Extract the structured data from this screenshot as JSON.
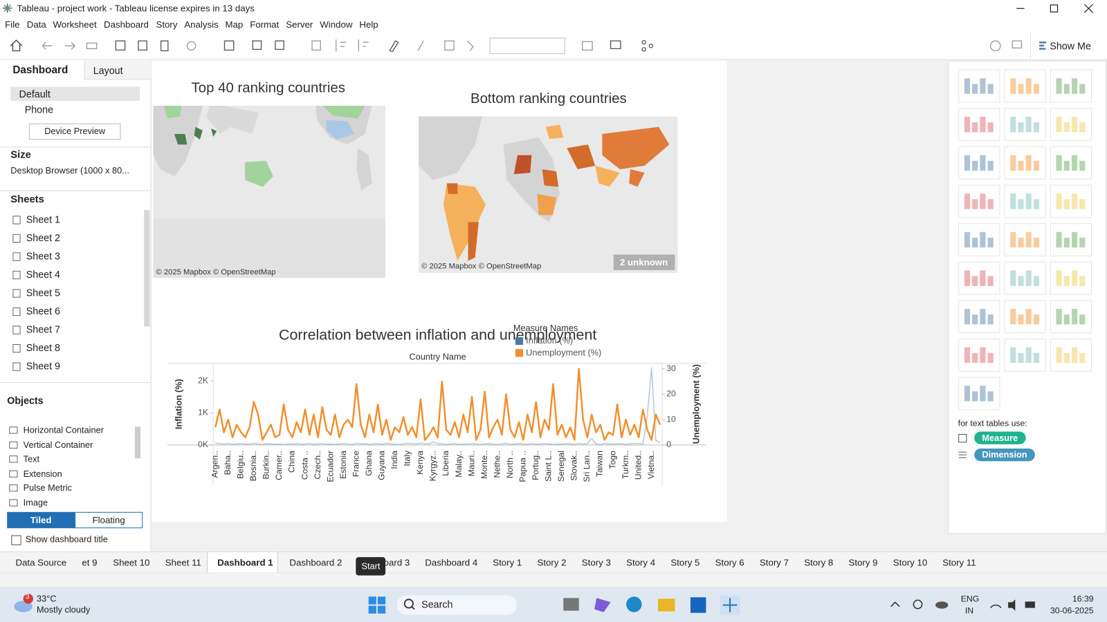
{
  "window": {
    "title": "Tableau - project work - Tableau license expires in 13 days"
  },
  "menu": [
    "File",
    "Data",
    "Worksheet",
    "Dashboard",
    "Story",
    "Analysis",
    "Map",
    "Format",
    "Server",
    "Window",
    "Help"
  ],
  "toolbar": {
    "show_me": "Show Me"
  },
  "left_panel": {
    "tabs": [
      "Dashboard",
      "Layout"
    ],
    "devices": [
      "Default",
      "Phone"
    ],
    "device_preview": "Device Preview",
    "size_label": "Size",
    "size_value": "Desktop Browser (1000 x 80...",
    "sheets_label": "Sheets",
    "sheets": [
      "Sheet 1",
      "Sheet 2",
      "Sheet 3",
      "Sheet 4",
      "Sheet 5",
      "Sheet 6",
      "Sheet 7",
      "Sheet 8",
      "Sheet 9"
    ],
    "objects_label": "Objects",
    "objects": [
      "Horizontal Container",
      "Vertical Container",
      "Text",
      "Extension",
      "Pulse Metric",
      "Image"
    ],
    "tiled": "Tiled",
    "floating": "Floating",
    "show_title": "Show dashboard title"
  },
  "map_top": {
    "title": "Top 40 ranking countries",
    "attribution": "© 2025 Mapbox © OpenStreetMap"
  },
  "map_bottom": {
    "title": "Bottom ranking countries",
    "attribution": "© 2025 Mapbox © OpenStreetMap",
    "unknown": "2 unknown"
  },
  "chart_data": {
    "type": "line",
    "title": "Correlation between inflation and unemployment",
    "x_label": "Country Name",
    "y_label": "Inflation (%)",
    "y2_label": "Unemployment (%)",
    "legend_title": "Measure Names",
    "categories": [
      "Argen..",
      null,
      null,
      "Baha..",
      null,
      null,
      "Belgiu..",
      null,
      null,
      "Bosnia..",
      null,
      null,
      "Burkin..",
      null,
      null,
      "Camer..",
      null,
      null,
      "China",
      null,
      null,
      "Costa ..",
      null,
      null,
      "Czech..",
      null,
      null,
      "Ecuador",
      null,
      null,
      "Estonia",
      null,
      null,
      "France",
      null,
      null,
      "Ghana",
      null,
      null,
      "Guyana",
      null,
      null,
      "India",
      null,
      null,
      "Italy",
      null,
      null,
      "Kenya",
      null,
      null,
      "Kyrgyz..",
      null,
      null,
      "Liberia",
      null,
      null,
      "Malay..",
      null,
      null,
      "Mauri..",
      null,
      null,
      "Monte..",
      null,
      null,
      "Nethe..",
      null,
      null,
      "North ..",
      null,
      null,
      "Papua ..",
      null,
      null,
      "Portug..",
      null,
      null,
      "Saint L..",
      null,
      null,
      "Senegal",
      null,
      null,
      "Slovak..",
      null,
      null,
      "Sri Lan..",
      null,
      null,
      "Taiwan",
      null,
      null,
      "Togo",
      null,
      null,
      "Turkm..",
      null,
      null,
      "United..",
      null,
      null,
      "Vietna..",
      null,
      null
    ],
    "series": [
      {
        "name": "Inflation (%)",
        "color": "#b9c6d6",
        "legend_color": "#4e79a7",
        "values": [
          60,
          40,
          30,
          50,
          20,
          30,
          40,
          25,
          30,
          50,
          30,
          20,
          40,
          30,
          25,
          30,
          20,
          30,
          25,
          40,
          20,
          30,
          50,
          20,
          30,
          40,
          25,
          30,
          20,
          30,
          40,
          25,
          20,
          50,
          30,
          40,
          20,
          30,
          40,
          20,
          50,
          30,
          25,
          20,
          30,
          50,
          40,
          30,
          60,
          40,
          30,
          100,
          40,
          30,
          20,
          30,
          40,
          20,
          30,
          25,
          40,
          30,
          20,
          30,
          40,
          25,
          20,
          30,
          50,
          20,
          30,
          40,
          30,
          25,
          40,
          20,
          30,
          40,
          30,
          20,
          30,
          25,
          40,
          30,
          20,
          50,
          30,
          40,
          200,
          30,
          20,
          40,
          30,
          25,
          30,
          40,
          20,
          30,
          50,
          40,
          30,
          900,
          2400,
          150,
          60
        ]
      },
      {
        "name": "Unemployment (%)",
        "color": "#f28e2b",
        "axis": "y2",
        "values": [
          7,
          14,
          5,
          10,
          3,
          8,
          5,
          3,
          7,
          17,
          12,
          2,
          5,
          8,
          3,
          4,
          16,
          6,
          3,
          9,
          5,
          14,
          4,
          12,
          3,
          15,
          6,
          4,
          12,
          3,
          8,
          10,
          7,
          24,
          8,
          3,
          12,
          5,
          16,
          4,
          10,
          2,
          7,
          5,
          11,
          4,
          7,
          3,
          18,
          2,
          4,
          7,
          3,
          25,
          6,
          4,
          9,
          3,
          12,
          5,
          19,
          2,
          6,
          21,
          3,
          7,
          10,
          4,
          20,
          6,
          3,
          9,
          2,
          12,
          5,
          17,
          3,
          10,
          6,
          24,
          4,
          8,
          3,
          7,
          2,
          30,
          10,
          3,
          12,
          5,
          8,
          2,
          5,
          4,
          16,
          3,
          10,
          4,
          8,
          3,
          14,
          6,
          2,
          12,
          8
        ]
      }
    ],
    "ylim": [
      0,
      2550
    ],
    "yticks": [
      {
        "value": 0,
        "label": "0K"
      },
      {
        "value": 1000,
        "label": "1K"
      },
      {
        "value": 2000,
        "label": "2K"
      }
    ],
    "y2lim": [
      0,
      32.2
    ],
    "y2ticks": [
      0,
      10,
      20,
      30
    ],
    "grid": false
  },
  "show_me": {
    "hint": "for text tables use:",
    "measure": "Measure",
    "dimension": "Dimension"
  },
  "tabs": [
    "Data Source",
    "et 9",
    "Sheet 10",
    "Sheet 11",
    "Dashboard 1",
    "Dashboard 2",
    "Dashboard 3",
    "Dashboard 4",
    "Story 1",
    "Story 2",
    "Story 3",
    "Story 4",
    "Story 5",
    "Story 6",
    "Story 7",
    "Story 8",
    "Story 9",
    "Story 10",
    "Story 11"
  ],
  "active_tab": "Dashboard 1",
  "tooltip": "Start",
  "taskbar": {
    "badge": "3",
    "temperature": "33°C",
    "weather": "Mostly cloudy",
    "search": "Search",
    "lang1": "ENG",
    "lang2": "IN",
    "time": "16:39",
    "date": "30-06-2025"
  }
}
